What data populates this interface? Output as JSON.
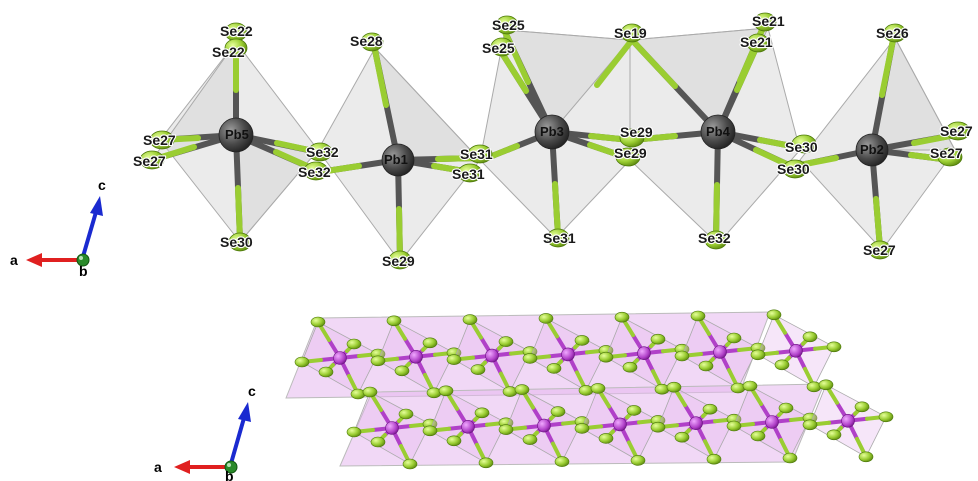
{
  "top_structure": {
    "labels": {
      "se22_a": "Se22",
      "se22_b": "Se22",
      "se28": "Se28",
      "se25_a": "Se25",
      "se25_b": "Se25",
      "se19": "Se19",
      "se21_a": "Se21",
      "se21_b": "Se21",
      "se26": "Se26",
      "se27_l1": "Se27",
      "se27_l2": "Se27",
      "pb5": "Pb5",
      "se32_a": "Se32",
      "se32_b": "Se32",
      "pb1": "Pb1",
      "se31_a": "Se31",
      "se31_b": "Se31",
      "pb3": "Pb3",
      "se29_a": "Se29",
      "se29_b": "Se29",
      "pb4": "Pb4",
      "se30_a": "Se30",
      "se30_b": "Se30",
      "pb2": "Pb2",
      "se27_r1": "Se27",
      "se27_r2": "Se27",
      "se30_bot": "Se30",
      "se29_bot": "Se29",
      "se31_bot": "Se31",
      "se32_bot": "Se32",
      "se27_bot": "Se27"
    }
  },
  "axes_top": {
    "a": "a",
    "b": "b",
    "c": "c"
  },
  "axes_bottom": {
    "a": "a",
    "b": "b",
    "c": "c"
  },
  "colors": {
    "pb_atom": "#4a4a4a",
    "se_atom": "#9acd32",
    "polyhedron_top": "#d3d3d3",
    "polyhedron_bottom": "#e6b8ee",
    "pb_atom_bottom": "#b040c8",
    "axis_a": "#e02020",
    "axis_b": "#2a8a2a",
    "axis_c": "#1a2ad0"
  }
}
